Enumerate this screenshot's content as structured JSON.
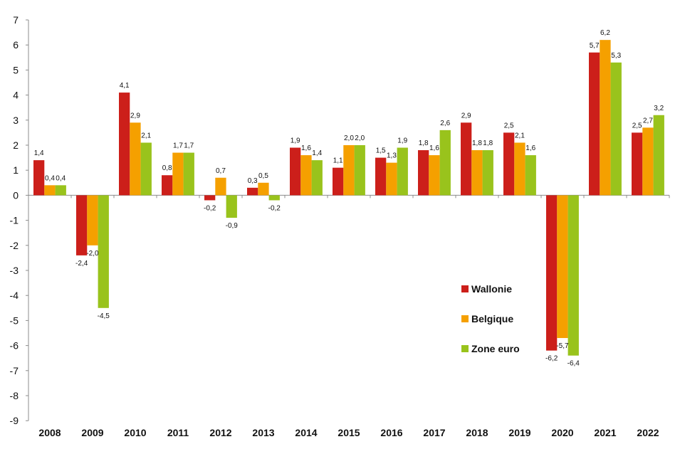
{
  "chart_data": {
    "type": "bar",
    "categories": [
      "2008",
      "2009",
      "2010",
      "2011",
      "2012",
      "2013",
      "2014",
      "2015",
      "2016",
      "2017",
      "2018",
      "2019",
      "2020",
      "2021",
      "2022"
    ],
    "series": [
      {
        "name": "Wallonie",
        "color": "#cc1f1a",
        "values": [
          1.4,
          -2.4,
          4.1,
          0.8,
          -0.2,
          0.3,
          1.9,
          1.1,
          1.5,
          1.8,
          2.9,
          2.5,
          -6.2,
          5.7,
          2.5
        ],
        "labels": [
          "1,4",
          "-2,4",
          "4,1",
          "0,8",
          "-0,2",
          "0,3",
          "1,9",
          "1,1",
          "1,5",
          "1,8",
          "2,9",
          "2,5",
          "-6,2",
          "5,7",
          "2,5"
        ]
      },
      {
        "name": "Belgique",
        "color": "#f5a000",
        "values": [
          0.4,
          -2.0,
          2.9,
          1.7,
          0.7,
          0.5,
          1.6,
          2.0,
          1.3,
          1.6,
          1.8,
          2.1,
          -5.7,
          6.2,
          2.7
        ],
        "labels": [
          "0,4",
          "-2,0",
          "2,9",
          "1,7",
          "0,7",
          "0,5",
          "1,6",
          "2,0",
          "1,3",
          "1,6",
          "1,8",
          "2,1",
          "-5,7",
          "6,2",
          "2,7"
        ]
      },
      {
        "name": "Zone euro",
        "color": "#99c31c",
        "values": [
          0.4,
          -4.5,
          2.1,
          1.7,
          -0.9,
          -0.2,
          1.4,
          2.0,
          1.9,
          2.6,
          1.8,
          1.6,
          -6.4,
          5.3,
          3.2
        ],
        "labels": [
          "0,4",
          "-4,5",
          "2,1",
          "1,7",
          "-0,9",
          "-0,2",
          "1,4",
          "2,0",
          "1,9",
          "2,6",
          "1,8",
          "1,6",
          "-6,4",
          "5,3",
          "3,2"
        ]
      }
    ],
    "yticks": [
      7,
      6,
      5,
      4,
      3,
      2,
      1,
      0,
      -1,
      -2,
      -3,
      -4,
      -5,
      -6,
      -7,
      -8,
      -9
    ],
    "ylim": [
      -9,
      7
    ],
    "grid": false,
    "legend": "center-right",
    "title": "",
    "xlabel": "",
    "ylabel": ""
  }
}
